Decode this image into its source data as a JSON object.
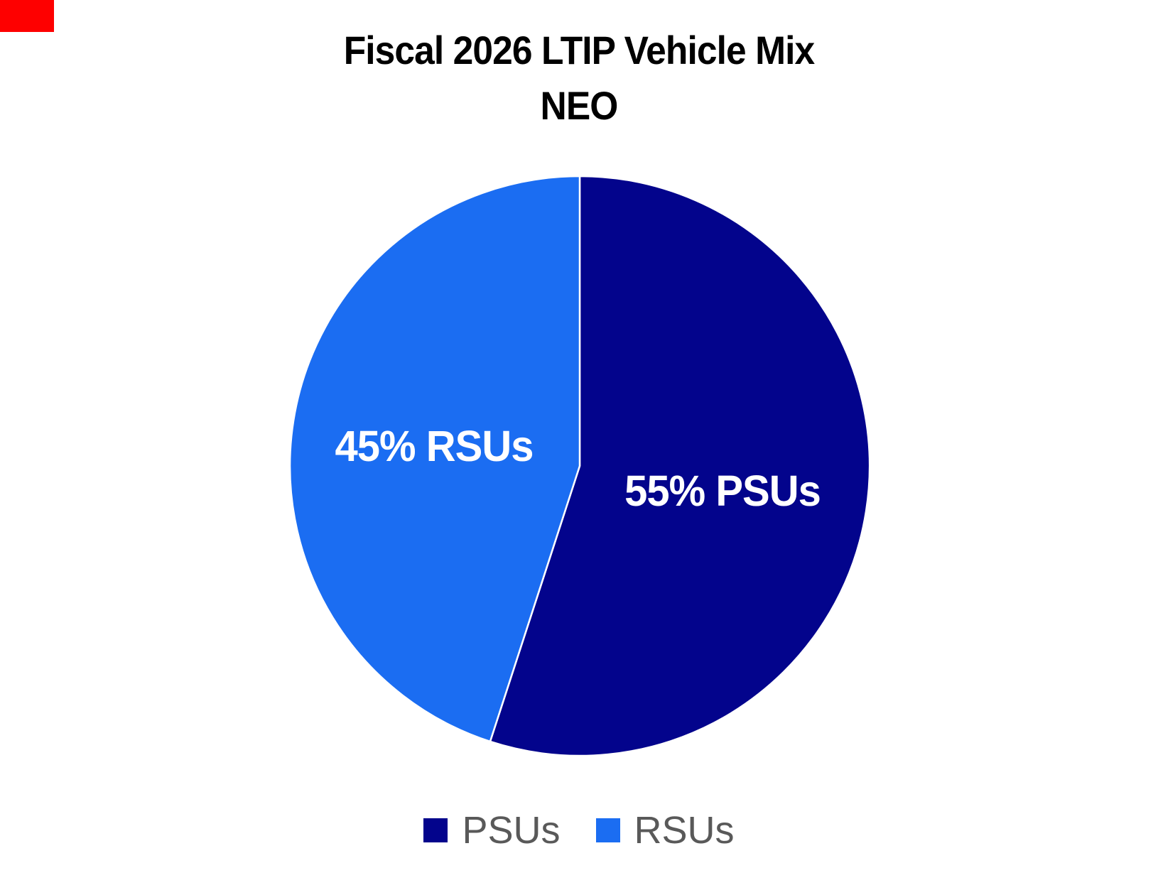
{
  "marker": {
    "color": "#FE0000"
  },
  "title": {
    "line1": "Fiscal 2026 LTIP Vehicle Mix",
    "line2": "NEO"
  },
  "chart_data": {
    "type": "pie",
    "title": "Fiscal 2026 LTIP Vehicle Mix NEO",
    "categories": [
      "PSUs",
      "RSUs"
    ],
    "values": [
      55,
      45
    ],
    "slices": [
      {
        "label": "PSUs",
        "value": 55,
        "percent": "55%",
        "data_label": "55% PSUs",
        "color": "#03048C"
      },
      {
        "label": "RSUs",
        "value": 45,
        "percent": "45%",
        "data_label": "45% RSUs",
        "color": "#1B6DF2"
      }
    ],
    "start_angle_deg": -90,
    "direction": "clockwise",
    "slice_border_color": "#FFFFFF",
    "data_label_color": "#FFFFFF",
    "legend_position": "bottom",
    "legend_text_color": "#595959",
    "background_color": "#FFFFFF"
  }
}
